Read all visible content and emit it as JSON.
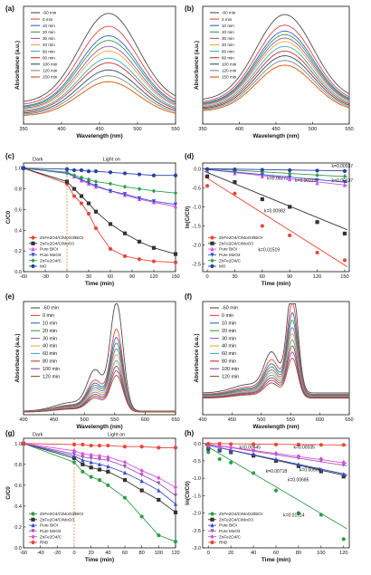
{
  "chart_data": [
    {
      "panel": "(a)",
      "type": "line",
      "xlabel": "Wavelength (nm)",
      "ylabel": "Absorbance (a.u.)",
      "xlim": [
        350,
        550
      ],
      "ylim": [
        0,
        1
      ],
      "xticks": [
        "350",
        "400",
        "450",
        "500",
        "550"
      ],
      "show_yticks": false,
      "legend_position": "top-left",
      "peak_x": 462,
      "peak_width": 55,
      "baseline": 0.18,
      "series": [
        {
          "name": "-60 min",
          "color": "#4d4d4d",
          "peak": 0.94
        },
        {
          "name": "0 min",
          "color": "#e8453c",
          "peak": 0.83
        },
        {
          "name": "10 min",
          "color": "#3a5fcd",
          "peak": 0.75
        },
        {
          "name": "20 min",
          "color": "#2e9d49",
          "peak": 0.71
        },
        {
          "name": "30 min",
          "color": "#9b59b6",
          "peak": 0.66
        },
        {
          "name": "40 min",
          "color": "#e7a93a",
          "peak": 0.62
        },
        {
          "name": "60 min",
          "color": "#3aa8c9",
          "peak": 0.56
        },
        {
          "name": "80 min",
          "color": "#c0392b",
          "peak": 0.52
        },
        {
          "name": "100 min",
          "color": "#34495e",
          "peak": 0.46
        },
        {
          "name": "120 min",
          "color": "#7f8c8d",
          "peak": 0.41
        },
        {
          "name": "150 min",
          "color": "#d35400",
          "peak": 0.36
        }
      ]
    },
    {
      "panel": "(b)",
      "type": "line",
      "xlabel": "Wavelength (nm)",
      "ylabel": "Absorbance (a.u.)",
      "xlim": [
        350,
        550
      ],
      "ylim": [
        0,
        1
      ],
      "xticks": [
        "350",
        "400",
        "450",
        "500",
        "550"
      ],
      "show_yticks": false,
      "legend_position": "top-left",
      "peak_x": 462,
      "peak_width": 55,
      "baseline": 0.2,
      "series": [
        {
          "name": "-60 min",
          "color": "#4d4d4d",
          "peak": 0.93
        },
        {
          "name": "0 min",
          "color": "#e8453c",
          "peak": 0.84
        },
        {
          "name": "10 min",
          "color": "#3a5fcd",
          "peak": 0.79
        },
        {
          "name": "20 min",
          "color": "#2e9d49",
          "peak": 0.76
        },
        {
          "name": "30 min",
          "color": "#9b59b6",
          "peak": 0.73
        },
        {
          "name": "40 min",
          "color": "#e7a93a",
          "peak": 0.7
        },
        {
          "name": "60 min",
          "color": "#3aa8c9",
          "peak": 0.66
        },
        {
          "name": "80 min",
          "color": "#c0392b",
          "peak": 0.62
        },
        {
          "name": "100 min",
          "color": "#34495e",
          "peak": 0.58
        },
        {
          "name": "120 min",
          "color": "#7f8c8d",
          "peak": 0.54
        },
        {
          "name": "150 min",
          "color": "#d35400",
          "peak": 0.5
        }
      ]
    },
    {
      "panel": "(c)",
      "type": "line",
      "xlabel": "Time (min)",
      "ylabel": "C/C0",
      "xlim": [
        -60,
        150
      ],
      "ylim": [
        0,
        1.05
      ],
      "xticks": [
        "-60",
        "-30",
        "0",
        "30",
        "60",
        "90",
        "120",
        "150"
      ],
      "yticks": [
        "0.0",
        "0.2",
        "0.4",
        "0.6",
        "0.8",
        "1.0"
      ],
      "zones": {
        "dark": "Dark",
        "light": "Light on"
      },
      "legend_position": "bottom-left",
      "x": [
        -60,
        0,
        10,
        20,
        30,
        40,
        60,
        80,
        100,
        120,
        150
      ],
      "series": [
        {
          "name": "ZnFe2O4/C/MoO3/BiOI",
          "color": "#e8453c",
          "marker": "circle",
          "values": [
            1,
            0.85,
            0.73,
            0.66,
            0.56,
            0.42,
            0.22,
            0.15,
            0.12,
            0.1,
            0.09
          ]
        },
        {
          "name": "ZnFe2O4/C/MoO3",
          "color": "#333333",
          "marker": "square",
          "values": [
            1,
            0.87,
            0.8,
            0.73,
            0.66,
            0.58,
            0.46,
            0.37,
            0.29,
            0.23,
            0.17
          ]
        },
        {
          "name": "Pure BiOI",
          "color": "#d94ee0",
          "marker": "triangle",
          "values": [
            1,
            0.96,
            0.92,
            0.88,
            0.85,
            0.82,
            0.78,
            0.74,
            0.7,
            0.67,
            0.63
          ]
        },
        {
          "name": "Pure MoO3",
          "color": "#3a4fcd",
          "marker": "triangle-down",
          "values": [
            1,
            0.95,
            0.92,
            0.89,
            0.86,
            0.83,
            0.78,
            0.75,
            0.71,
            0.68,
            0.65
          ]
        },
        {
          "name": "ZnFe2O4/C",
          "color": "#2e9d49",
          "marker": "diamond",
          "values": [
            1,
            0.96,
            0.93,
            0.91,
            0.89,
            0.87,
            0.85,
            0.82,
            0.8,
            0.78,
            0.76
          ]
        },
        {
          "name": "MO",
          "color": "#2a3ea8",
          "marker": "circle",
          "values": [
            1,
            0.99,
            0.98,
            0.98,
            0.97,
            0.97,
            0.96,
            0.95,
            0.94,
            0.93,
            0.93
          ]
        }
      ]
    },
    {
      "panel": "(d)",
      "type": "scatter",
      "xlabel": "Time (min)",
      "ylabel": "ln(C/C0)",
      "xlim": [
        -5,
        155
      ],
      "ylim": [
        -2.7,
        0.15
      ],
      "xticks": [
        "0",
        "30",
        "60",
        "90",
        "120",
        "150"
      ],
      "yticks": [
        "0.0",
        "-0.5",
        "-1.0",
        "-1.5",
        "-2.0",
        "-2.5"
      ],
      "legend_position": "bottom-left",
      "x": [
        0,
        30,
        60,
        90,
        120,
        150
      ],
      "series": [
        {
          "name": "ZnFe2O4/C/MoO3/BiOI",
          "color": "#e8453c",
          "marker": "circle",
          "k": "k=0.01519",
          "intercept": -0.25,
          "values": [
            -0.45,
            -0.65,
            -1.5,
            -1.75,
            -2.2,
            -2.4
          ]
        },
        {
          "name": "ZnFe2O4/C/MoO3",
          "color": "#333333",
          "marker": "square",
          "k": "k=0.00982",
          "intercept": -0.1,
          "values": [
            -0.2,
            -0.35,
            -0.8,
            -1.0,
            -1.4,
            -1.7
          ]
        },
        {
          "name": "Pure BiOI",
          "color": "#d94ee0",
          "marker": "triangle",
          "k": "k=0.00272",
          "intercept": -0.02,
          "values": [
            -0.05,
            -0.12,
            -0.2,
            -0.28,
            -0.38,
            -0.43
          ]
        },
        {
          "name": "Pure MoO3",
          "color": "#3a4fcd",
          "marker": "triangle-down",
          "k": "k=0.00223",
          "intercept": -0.02,
          "values": [
            -0.04,
            -0.1,
            -0.16,
            -0.22,
            -0.3,
            -0.35
          ]
        },
        {
          "name": "ZnFe2O4/C",
          "color": "#2e9d49",
          "marker": "diamond",
          "k": "k=0.00137",
          "intercept": 0,
          "values": [
            -0.03,
            -0.06,
            -0.09,
            -0.13,
            -0.17,
            -0.2
          ]
        },
        {
          "name": "MO",
          "color": "#2a3ea8",
          "marker": "circle",
          "k": "k=0.00037",
          "intercept": 0,
          "values": [
            -0.01,
            -0.02,
            -0.03,
            -0.04,
            -0.05,
            -0.06
          ]
        }
      ]
    },
    {
      "panel": "(e)",
      "type": "line",
      "xlabel": "Wavelength (nm)",
      "ylabel": "Absorbance (a.u.)",
      "xlim": [
        400,
        650
      ],
      "ylim": [
        0,
        1
      ],
      "xticks": [
        "400",
        "450",
        "500",
        "550",
        "600",
        "650"
      ],
      "show_yticks": false,
      "legend_position": "top-left",
      "peak_x": 553,
      "peak_width": 15,
      "shoulder": true,
      "baseline": 0.02,
      "series": [
        {
          "name": "-60 min",
          "color": "#4d4d4d",
          "peak": 0.95
        },
        {
          "name": "0 min",
          "color": "#e8453c",
          "peak": 0.72
        },
        {
          "name": "10 min",
          "color": "#3a5fcd",
          "peak": 0.65
        },
        {
          "name": "20 min",
          "color": "#2e9d49",
          "peak": 0.6
        },
        {
          "name": "30 min",
          "color": "#9b59b6",
          "peak": 0.55
        },
        {
          "name": "40 min",
          "color": "#e7a93a",
          "peak": 0.5
        },
        {
          "name": "60 min",
          "color": "#3aa8c9",
          "peak": 0.45
        },
        {
          "name": "80 min",
          "color": "#c0392b",
          "peak": 0.4
        },
        {
          "name": "100 min",
          "color": "#8e44ad",
          "peak": 0.36
        },
        {
          "name": "120 min",
          "color": "#a0522d",
          "peak": 0.32
        }
      ]
    },
    {
      "panel": "(f)",
      "type": "line",
      "xlabel": "Wavelength (nm)",
      "ylabel": "Absorbance (a.u.)",
      "xlim": [
        400,
        650
      ],
      "ylim": [
        0,
        1
      ],
      "xticks": [
        "400",
        "450",
        "500",
        "550",
        "600",
        "650"
      ],
      "show_yticks": false,
      "legend_position": "top-left",
      "peak_x": 553,
      "peak_width": 13,
      "shoulder": true,
      "baseline": 0.12,
      "series": [
        {
          "name": "-60 min",
          "color": "#4d4d4d",
          "peak": 0.95
        },
        {
          "name": "0 min",
          "color": "#e8453c",
          "peak": 0.8
        },
        {
          "name": "10 min",
          "color": "#3a5fcd",
          "peak": 0.72
        },
        {
          "name": "20 min",
          "color": "#2e9d49",
          "peak": 0.66
        },
        {
          "name": "30 min",
          "color": "#9b59b6",
          "peak": 0.6
        },
        {
          "name": "40 min",
          "color": "#e7a93a",
          "peak": 0.55
        },
        {
          "name": "60 min",
          "color": "#3aa8c9",
          "peak": 0.5
        },
        {
          "name": "80 min",
          "color": "#c0392b",
          "peak": 0.45
        },
        {
          "name": "100 min",
          "color": "#8e44ad",
          "peak": 0.4
        },
        {
          "name": "120 min",
          "color": "#a0522d",
          "peak": 0.35
        }
      ]
    },
    {
      "panel": "(g)",
      "type": "line",
      "xlabel": "Time (min)",
      "ylabel": "C/C0",
      "xlim": [
        -60,
        120
      ],
      "ylim": [
        0,
        1.05
      ],
      "xticks": [
        "-60",
        "-40",
        "-20",
        "0",
        "20",
        "40",
        "60",
        "80",
        "100",
        "120"
      ],
      "yticks": [
        "0.0",
        "0.2",
        "0.4",
        "0.6",
        "0.8",
        "1.0"
      ],
      "zones": {
        "dark": "Dark",
        "light": "Light on"
      },
      "legend_position": "bottom-left",
      "x": [
        -60,
        0,
        10,
        20,
        30,
        40,
        60,
        80,
        100,
        120
      ],
      "series": [
        {
          "name": "ZnFe2O4/C/MoO3/BiOI",
          "color": "#2e9d49",
          "marker": "circle",
          "values": [
            1,
            0.82,
            0.73,
            0.68,
            0.65,
            0.6,
            0.48,
            0.3,
            0.12,
            0.06
          ]
        },
        {
          "name": "ZnFe2O4/C/MoO3",
          "color": "#333333",
          "marker": "square",
          "values": [
            1,
            0.86,
            0.8,
            0.77,
            0.75,
            0.73,
            0.65,
            0.55,
            0.46,
            0.34
          ]
        },
        {
          "name": "Pure BiOI",
          "color": "#3a4fcd",
          "marker": "triangle",
          "values": [
            1,
            0.88,
            0.84,
            0.82,
            0.8,
            0.78,
            0.72,
            0.64,
            0.55,
            0.42
          ]
        },
        {
          "name": "Pure MoO3",
          "color": "#9b59b6",
          "marker": "triangle-down",
          "values": [
            1,
            0.9,
            0.87,
            0.86,
            0.85,
            0.84,
            0.78,
            0.7,
            0.62,
            0.5
          ]
        },
        {
          "name": "ZnFe2O4/C",
          "color": "#d94ee0",
          "marker": "diamond",
          "values": [
            1,
            0.93,
            0.9,
            0.89,
            0.88,
            0.87,
            0.82,
            0.74,
            0.67,
            0.58
          ]
        },
        {
          "name": "RhB",
          "color": "#e8453c",
          "marker": "circle",
          "values": [
            1,
            0.99,
            0.99,
            0.98,
            0.98,
            0.98,
            0.97,
            0.97,
            0.96,
            0.96
          ]
        }
      ]
    },
    {
      "panel": "(h)",
      "type": "scatter",
      "xlabel": "Time (min)",
      "ylabel": "ln(Ct/C0)",
      "xlim": [
        -5,
        125
      ],
      "ylim": [
        -3.0,
        0.15
      ],
      "xticks": [
        "0",
        "20",
        "40",
        "60",
        "80",
        "100",
        "120"
      ],
      "yticks": [
        "0.0",
        "-0.5",
        "-1.0",
        "-1.5",
        "-2.0",
        "-2.5",
        "-3.0"
      ],
      "legend_position": "bottom-left",
      "x": [
        0,
        10,
        20,
        40,
        60,
        80,
        100,
        120
      ],
      "series": [
        {
          "name": "ZnFe2O4/C/MoO3/BiOI",
          "color": "#2e9d49",
          "marker": "circle",
          "k": "k=0.01914",
          "intercept": -0.1,
          "values": [
            -0.25,
            -0.45,
            -0.55,
            -0.85,
            -1.35,
            -2.0,
            -2.05,
            -2.75
          ]
        },
        {
          "name": "ZnFe2O4/C/MoO3",
          "color": "#333333",
          "marker": "square",
          "k": "k=0.00718",
          "intercept": -0.05,
          "values": [
            -0.15,
            -0.2,
            -0.25,
            -0.35,
            -0.5,
            -0.65,
            -0.8,
            -0.95
          ]
        },
        {
          "name": "Pure BiOI",
          "color": "#3a4fcd",
          "marker": "triangle",
          "k": "k=0.00685",
          "intercept": -0.05,
          "values": [
            -0.12,
            -0.18,
            -0.22,
            -0.3,
            -0.45,
            -0.6,
            -0.75,
            -0.88
          ]
        },
        {
          "name": "Pure MoO3",
          "color": "#9b59b6",
          "marker": "triangle-down",
          "k": "k=0.00505",
          "intercept": -0.02,
          "values": [
            -0.08,
            -0.12,
            -0.16,
            -0.22,
            -0.32,
            -0.42,
            -0.5,
            -0.62
          ]
        },
        {
          "name": "ZnFe2O4/C",
          "color": "#d94ee0",
          "marker": "diamond",
          "k": "k=0.00445",
          "intercept": -0.02,
          "values": [
            -0.06,
            -0.1,
            -0.12,
            -0.2,
            -0.28,
            -0.36,
            -0.44,
            -0.54
          ]
        },
        {
          "name": "RhB",
          "color": "#e8453c",
          "marker": "circle",
          "k": "k=0.00035",
          "intercept": 0,
          "values": [
            -0.01,
            -0.01,
            -0.02,
            -0.02,
            -0.03,
            -0.03,
            -0.04,
            -0.04
          ]
        }
      ]
    }
  ]
}
